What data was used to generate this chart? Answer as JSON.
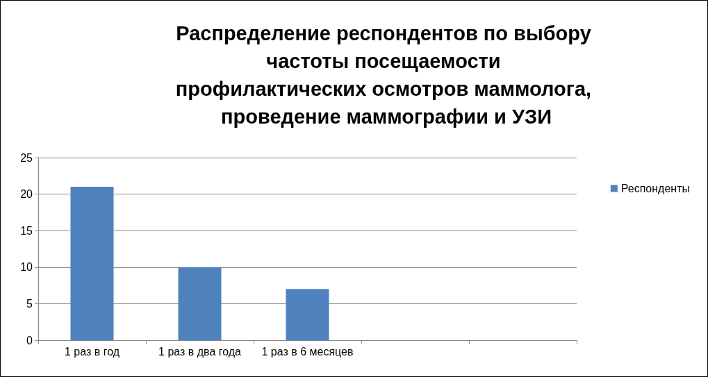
{
  "chart_data": {
    "type": "bar",
    "title": "Распределение респондентов по выбору частоты посещаемости профилактических осмотров маммолога, проведение маммографии и УЗИ",
    "categories": [
      "1 раз в год",
      "1 раз в два года",
      "1 раз в 6 месяцев",
      null,
      null
    ],
    "series": [
      {
        "name": "Респонденты",
        "color": "#4f81bd",
        "values": [
          21,
          10,
          7,
          null,
          null
        ]
      }
    ],
    "ylim": [
      0,
      25
    ],
    "yticks": [
      0,
      5,
      10,
      15,
      20,
      25
    ],
    "grid": "y",
    "legend": "right"
  }
}
